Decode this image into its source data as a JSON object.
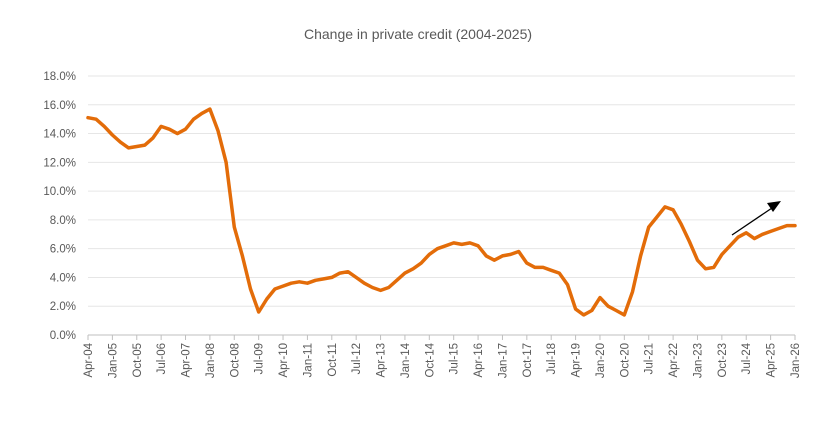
{
  "chart_data": {
    "type": "line",
    "title": "Change in private credit (2004-2025)",
    "xlabel": "",
    "ylabel": "",
    "ylim": [
      0,
      18
    ],
    "ytick_labels": [
      "0.0%",
      "2.0%",
      "4.0%",
      "6.0%",
      "8.0%",
      "10.0%",
      "12.0%",
      "14.0%",
      "16.0%",
      "18.0%"
    ],
    "ytick_values": [
      0,
      2,
      4,
      6,
      8,
      10,
      12,
      14,
      16,
      18
    ],
    "xtick_labels": [
      "Apr-04",
      "Jan-05",
      "Oct-05",
      "Jul-06",
      "Apr-07",
      "Jan-08",
      "Oct-08",
      "Jul-09",
      "Apr-10",
      "Jan-11",
      "Oct-11",
      "Jul-12",
      "Apr-13",
      "Jan-14",
      "Oct-14",
      "Jul-15",
      "Apr-16",
      "Jan-17",
      "Oct-17",
      "Jul-18",
      "Apr-19",
      "Jan-20",
      "Oct-20",
      "Jul-21",
      "Apr-22",
      "Jan-23",
      "Oct-23",
      "Jul-24",
      "Apr-25",
      "Jan-26"
    ],
    "grid": true,
    "legend": "none",
    "line_color": "#E36C09",
    "annotation": {
      "type": "arrow",
      "meaning": "upward trend",
      "color": "#000000"
    },
    "series": [
      {
        "x": [
          "Apr-04",
          "Jul-04",
          "Oct-04",
          "Jan-05",
          "Apr-05",
          "Jul-05",
          "Oct-05",
          "Jan-06",
          "Apr-06",
          "Jul-06",
          "Oct-06",
          "Jan-07",
          "Apr-07",
          "Jul-07",
          "Oct-07",
          "Jan-08",
          "Apr-08",
          "Jul-08",
          "Oct-08",
          "Jan-09",
          "Apr-09",
          "Jul-09",
          "Oct-09",
          "Jan-10",
          "Apr-10",
          "Jul-10",
          "Oct-10",
          "Jan-11",
          "Apr-11",
          "Jul-11",
          "Oct-11",
          "Jan-12",
          "Apr-12",
          "Jul-12",
          "Oct-12",
          "Jan-13",
          "Apr-13",
          "Jul-13",
          "Oct-13",
          "Jan-14",
          "Apr-14",
          "Jul-14",
          "Oct-14",
          "Jan-15",
          "Apr-15",
          "Jul-15",
          "Oct-15",
          "Jan-16",
          "Apr-16",
          "Jul-16",
          "Oct-16",
          "Jan-17",
          "Apr-17",
          "Jul-17",
          "Oct-17",
          "Jan-18",
          "Apr-18",
          "Jul-18",
          "Oct-18",
          "Jan-19",
          "Apr-19",
          "Jul-19",
          "Oct-19",
          "Jan-20",
          "Apr-20",
          "Jul-20",
          "Oct-20",
          "Jan-21",
          "Apr-21",
          "Jul-21",
          "Oct-21",
          "Jan-22",
          "Apr-22",
          "Jul-22",
          "Oct-22",
          "Jan-23",
          "Apr-23",
          "Jul-23",
          "Oct-23",
          "Jan-24",
          "Apr-24",
          "Jul-24",
          "Oct-24",
          "Jan-25",
          "Apr-25",
          "Jul-25",
          "Oct-25",
          "Jan-26"
        ],
        "values": [
          15.1,
          15.0,
          14.5,
          13.9,
          13.4,
          13.0,
          13.1,
          13.2,
          13.7,
          14.5,
          14.3,
          14.0,
          14.3,
          15.0,
          15.4,
          15.7,
          14.2,
          12.0,
          7.5,
          5.5,
          3.2,
          1.6,
          2.5,
          3.2,
          3.4,
          3.6,
          3.7,
          3.6,
          3.8,
          3.9,
          4.0,
          4.3,
          4.4,
          4.0,
          3.6,
          3.3,
          3.1,
          3.3,
          3.8,
          4.3,
          4.6,
          5.0,
          5.6,
          6.0,
          6.2,
          6.4,
          6.3,
          6.4,
          6.2,
          5.5,
          5.2,
          5.5,
          5.6,
          5.8,
          5.0,
          4.7,
          4.7,
          4.5,
          4.3,
          3.5,
          1.8,
          1.4,
          1.7,
          2.6,
          2.0,
          1.7,
          1.4,
          3.0,
          5.5,
          7.5,
          8.2,
          8.9,
          8.7,
          7.7,
          6.5,
          5.2,
          4.6,
          4.7,
          5.6,
          6.2,
          6.8,
          7.1,
          6.7,
          7.0,
          7.2,
          7.4,
          7.6,
          7.6
        ]
      }
    ]
  }
}
